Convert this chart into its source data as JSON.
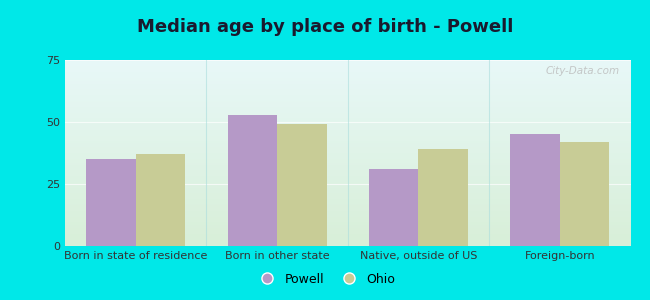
{
  "title": "Median age by place of birth - Powell",
  "categories": [
    "Born in state of residence",
    "Born in other state",
    "Native, outside of US",
    "Foreign-born"
  ],
  "powell_values": [
    35,
    53,
    31,
    45
  ],
  "ohio_values": [
    37,
    49,
    39,
    42
  ],
  "powell_color": "#b599c7",
  "ohio_color": "#c8cc96",
  "ylim": [
    0,
    75
  ],
  "yticks": [
    0,
    25,
    50,
    75
  ],
  "background_color": "#00e8e8",
  "plot_bg_topleft": "#d8efd8",
  "plot_bg_bottomright": "#e8f8f8",
  "legend_powell": "Powell",
  "legend_ohio": "Ohio",
  "bar_width": 0.35,
  "title_fontsize": 13,
  "tick_fontsize": 8,
  "legend_fontsize": 9,
  "title_color": "#1a1a2e"
}
